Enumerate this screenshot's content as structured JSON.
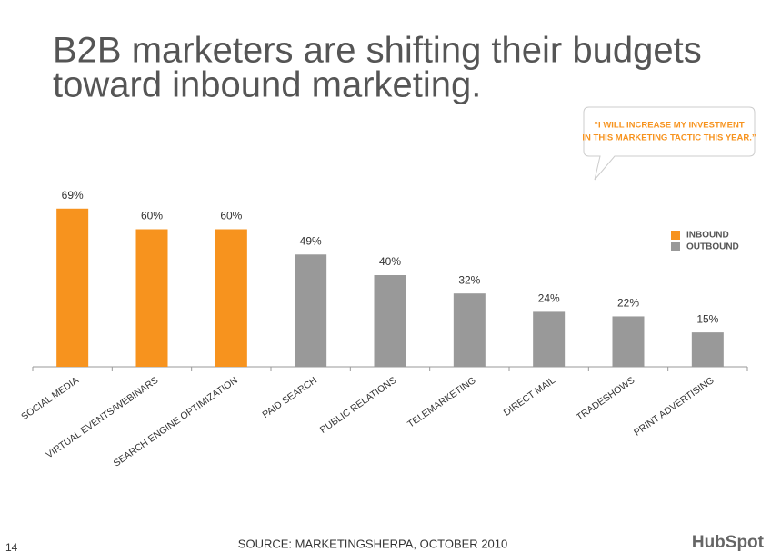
{
  "chart_data": {
    "type": "bar",
    "title": [
      "B2B marketers are shifting their budgets",
      "toward inbound marketing."
    ],
    "callout": [
      "“I WILL INCREASE MY INVESTMENT",
      "IN THIS MARKETING TACTIC THIS YEAR.”"
    ],
    "categories": [
      "SOCIAL MEDIA",
      "VIRTUAL EVENTS/WEBINARS",
      "SEARCH ENGINE OPTIMIZATION",
      "PAID SEARCH",
      "PUBLIC RELATIONS",
      "TELEMARKETING",
      "DIRECT MAIL",
      "TRADESHOWS",
      "PRINT ADVERTISING"
    ],
    "series": [
      {
        "name": "INBOUND",
        "color": "#f7931e",
        "values": [
          69,
          60,
          60,
          null,
          null,
          null,
          null,
          null,
          null
        ],
        "value_labels": [
          "69%",
          "60%",
          "60%",
          null,
          null,
          null,
          null,
          null,
          null
        ]
      },
      {
        "name": "OUTBOUND",
        "color": "#999999",
        "values": [
          null,
          null,
          null,
          49,
          40,
          32,
          24,
          22,
          15
        ],
        "value_labels": [
          null,
          null,
          null,
          "49%",
          "40%",
          "32%",
          "24%",
          "22%",
          "15%"
        ]
      }
    ],
    "ylim": [
      0,
      80
    ],
    "legend": "right",
    "source": "SOURCE: MARKETINGSHERPA, OCTOBER 2010",
    "page_number": "14",
    "logo": "HubSpot"
  }
}
